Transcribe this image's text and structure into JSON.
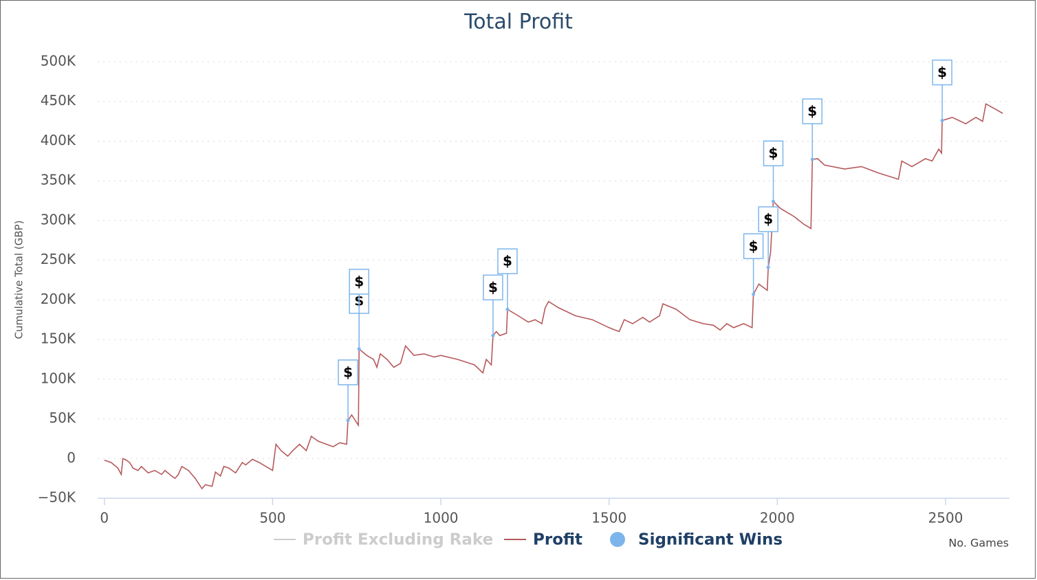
{
  "chart_data": {
    "type": "line",
    "title": "Total Profit",
    "y_label": "Cumulative Total (GBP)",
    "x_label": "No. Games",
    "xlim": [
      -20,
      2690
    ],
    "ylim": [
      -50000,
      500000
    ],
    "xticks": [
      0,
      500,
      1000,
      1500,
      2000,
      2500
    ],
    "yticks": [
      {
        "value": -50000,
        "label": "−50K"
      },
      0,
      {
        "value": 50000,
        "label": "50K"
      },
      {
        "value": 100000,
        "label": "100K"
      },
      {
        "value": 150000,
        "label": "150K"
      },
      {
        "value": 200000,
        "label": "200K"
      },
      {
        "value": 250000,
        "label": "250K"
      },
      {
        "value": 300000,
        "label": "300K"
      },
      {
        "value": 350000,
        "label": "350K"
      },
      {
        "value": 400000,
        "label": "400K"
      },
      {
        "value": 450000,
        "label": "450K"
      },
      {
        "value": 500000,
        "label": "500K"
      }
    ],
    "grid": true,
    "series": [
      {
        "name": "Profit Excluding Rake",
        "color": "#cccccc",
        "visible": false
      },
      {
        "name": "Profit",
        "color": "#b5595b",
        "visible": true,
        "x": [
          0,
          20,
          40,
          50,
          55,
          65,
          75,
          85,
          100,
          110,
          130,
          150,
          170,
          180,
          200,
          210,
          220,
          230,
          250,
          270,
          290,
          300,
          320,
          330,
          345,
          355,
          370,
          390,
          410,
          420,
          440,
          460,
          480,
          500,
          510,
          525,
          545,
          560,
          580,
          600,
          615,
          635,
          660,
          680,
          700,
          720,
          724,
          735,
          755,
          757,
          780,
          800,
          810,
          820,
          840,
          860,
          880,
          895,
          920,
          950,
          980,
          1000,
          1050,
          1100,
          1125,
          1135,
          1150,
          1155,
          1165,
          1175,
          1195,
          1198,
          1230,
          1260,
          1280,
          1300,
          1310,
          1320,
          1350,
          1400,
          1450,
          1500,
          1530,
          1545,
          1570,
          1600,
          1620,
          1650,
          1660,
          1700,
          1740,
          1780,
          1810,
          1830,
          1850,
          1870,
          1900,
          1925,
          1929,
          1945,
          1970,
          1973,
          1980,
          1988,
          2010,
          2050,
          2080,
          2100,
          2104,
          2120,
          2140,
          2200,
          2250,
          2300,
          2360,
          2370,
          2400,
          2440,
          2460,
          2480,
          2488,
          2490,
          2520,
          2560,
          2590,
          2610,
          2620,
          2650,
          2670
        ],
        "values": [
          -2000,
          -5000,
          -12000,
          -20000,
          0,
          -2000,
          -5000,
          -12000,
          -15000,
          -10000,
          -18000,
          -15000,
          -20000,
          -15000,
          -22000,
          -25000,
          -20000,
          -10000,
          -15000,
          -25000,
          -38000,
          -33000,
          -35000,
          -17000,
          -22000,
          -10000,
          -12000,
          -18000,
          -5000,
          -8000,
          -1000,
          -5000,
          -10000,
          -15000,
          18000,
          10000,
          3000,
          10000,
          18000,
          10000,
          28000,
          22000,
          18000,
          15000,
          20000,
          18000,
          48000,
          55000,
          42000,
          138000,
          130000,
          125000,
          115000,
          132000,
          125000,
          115000,
          120000,
          142000,
          130000,
          132000,
          128000,
          130000,
          125000,
          118000,
          108000,
          125000,
          118000,
          155000,
          160000,
          155000,
          158000,
          188000,
          180000,
          172000,
          175000,
          170000,
          190000,
          198000,
          190000,
          180000,
          175000,
          165000,
          160000,
          175000,
          170000,
          178000,
          172000,
          180000,
          195000,
          188000,
          175000,
          170000,
          168000,
          162000,
          170000,
          165000,
          170000,
          165000,
          207000,
          220000,
          212000,
          241000,
          260000,
          324000,
          315000,
          305000,
          295000,
          290000,
          377000,
          378000,
          370000,
          365000,
          368000,
          360000,
          352000,
          375000,
          368000,
          378000,
          375000,
          390000,
          385000,
          426000,
          430000,
          422000,
          430000,
          425000,
          447000,
          440000,
          435000
        ]
      },
      {
        "name": "Significant Wins",
        "color": "#7cb5ec",
        "visible": true,
        "flags": true,
        "x": [
          724,
          757,
          757,
          1155,
          1198,
          1929,
          1973,
          1988,
          2104,
          2490
        ],
        "values": [
          48000,
          138000,
          138000,
          155000,
          188000,
          207000,
          241000,
          324000,
          377000,
          426000
        ],
        "labels": [
          "$",
          "$",
          "$",
          "$",
          "$",
          "$",
          "$",
          "$",
          "$",
          "$"
        ]
      }
    ]
  }
}
